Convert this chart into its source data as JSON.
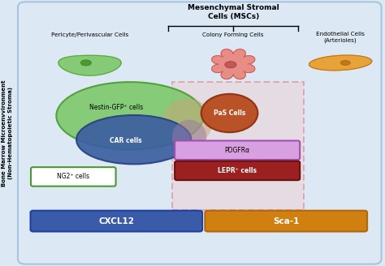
{
  "bg_color": "#dce9f5",
  "title_msc": "Mesenchymal Stromal\nCells (MSCs)",
  "label_pericyte": "Pericyte/Perivascular Cells",
  "label_colony": "Colony Forming Cells",
  "label_endothelial": "Endothelial Cells\n(Arterioles)",
  "label_ylabel": "Bone Marrow Microenvvironment\n(Non-Hematopoietic Stroma)",
  "label_nestin": "Nestin-GFP⁺ cells",
  "label_car": "CAR cells",
  "label_pas": "PaS Cells",
  "label_ng2": "NG2⁺ cells",
  "label_pdgfra": "PDGFRα",
  "label_lepr": "LEPR⁺ cells",
  "label_cxcl12": "CXCL12",
  "label_sca1": "Sca-1",
  "color_nestin_ellipse": "#7dc86a",
  "color_car_ellipse": "#3b5fa0",
  "color_pas_circle": "#b84b1e",
  "color_ng2_edge": "#4a9a30",
  "color_pdgfra_face": "#d8a0e0",
  "color_pdgfra_edge": "#a050b0",
  "color_lepr_face": "#9b2020",
  "color_lepr_edge": "#6b1010",
  "color_cxcl12_face": "#3a5ca8",
  "color_sca1_face": "#d08010",
  "color_dashed_box": "#e05050",
  "color_overlap_tan": "#c8a080",
  "color_overlap_purple": "#9878a8"
}
